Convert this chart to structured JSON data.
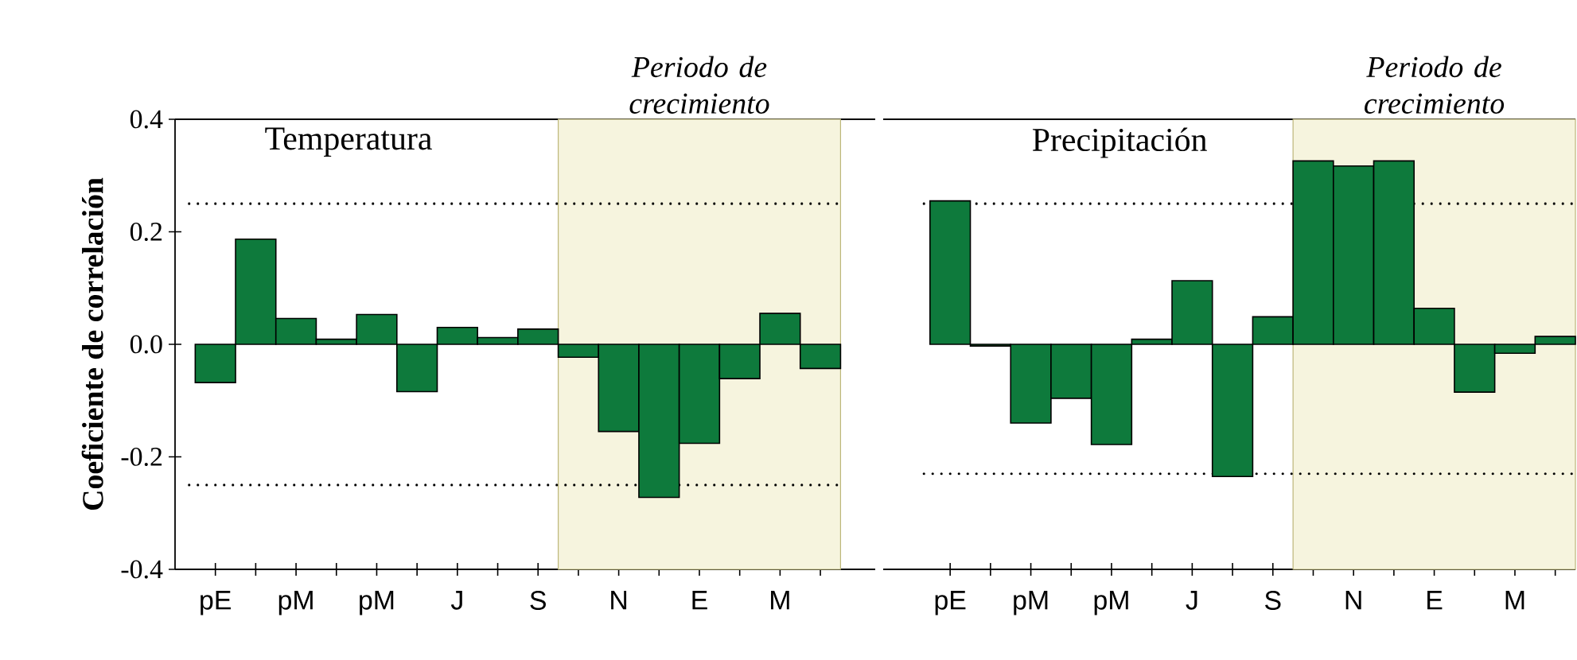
{
  "chart_data": [
    {
      "type": "bar",
      "title": "Temperatura",
      "ylabel": "Coeficiente de correlación",
      "categories": [
        "pE",
        null,
        "pM",
        null,
        "pM",
        null,
        "J",
        null,
        "S",
        null,
        "N",
        null,
        "E",
        null,
        "M",
        null
      ],
      "values": [
        -0.068,
        0.187,
        0.046,
        0.009,
        0.053,
        -0.084,
        0.03,
        0.012,
        0.027,
        -0.023,
        -0.155,
        -0.272,
        -0.176,
        -0.061,
        0.055,
        -0.043
      ],
      "color": "#0e7a3c",
      "ylim": [
        -0.4,
        0.4
      ],
      "yticks": [
        {
          "value": -0.4,
          "label": "-0.4"
        },
        {
          "value": -0.2,
          "label": "-0.2"
        },
        {
          "value": 0,
          "label": "0.0"
        },
        {
          "value": 0.2,
          "label": "0.2"
        },
        {
          "value": 0.4,
          "label": "0.4"
        }
      ],
      "ref_lines": [
        {
          "axis": "y",
          "value": 0.25,
          "line_style": "dotted",
          "color": "#000000"
        },
        {
          "axis": "y",
          "value": -0.25,
          "line_style": "dotted",
          "color": "#000000"
        }
      ],
      "annotations": [
        "Periodo de crecimiento"
      ]
    },
    {
      "type": "bar",
      "title": "Precipitación",
      "categories": [
        "pE",
        null,
        "pM",
        null,
        "pM",
        null,
        "J",
        null,
        "S",
        null,
        "N",
        null,
        "E",
        null,
        "M",
        null
      ],
      "values": [
        0.255,
        -0.003,
        -0.14,
        -0.096,
        -0.178,
        0.009,
        0.113,
        -0.235,
        0.049,
        0.326,
        0.317,
        0.326,
        0.064,
        -0.085,
        -0.016,
        0.014
      ],
      "color": "#0e7a3c",
      "ylim": [
        -0.4,
        0.4
      ],
      "tick_labels": "x",
      "ref_lines": [
        {
          "axis": "y",
          "value": 0.25,
          "line_style": "dotted",
          "color": "#000000"
        },
        {
          "axis": "y",
          "value": -0.23,
          "line_style": "dotted",
          "color": "#000000"
        }
      ],
      "annotations": [
        "Periodo de crecimiento"
      ]
    }
  ]
}
